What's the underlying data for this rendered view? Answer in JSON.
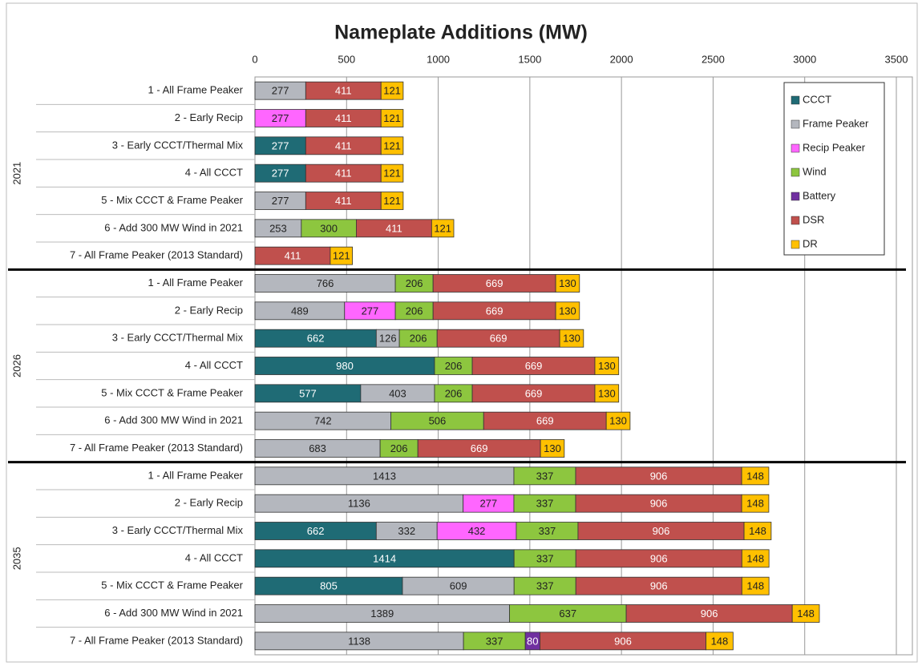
{
  "chart_data": {
    "type": "stacked-bar-horizontal",
    "title": "Nameplate Additions (MW)",
    "group_labels": [
      "2021",
      "2026",
      "2035"
    ],
    "categories": [
      "1 - All Frame Peaker",
      "2 - Early Recip",
      "3 - Early CCCT/Thermal Mix",
      "4 - All CCCT",
      "5 - Mix CCCT & Frame Peaker",
      "6 - Add 300 MW Wind in 2021",
      "7 - All Frame Peaker (2013 Standard)",
      "1 - All Frame Peaker",
      "2 - Early Recip",
      "3 - Early CCCT/Thermal Mix",
      "4 - All CCCT",
      "5 - Mix CCCT & Frame Peaker",
      "6 - Add 300 MW Wind in 2021",
      "7 - All Frame Peaker (2013 Standard)",
      "1 - All Frame Peaker",
      "2 - Early Recip",
      "3 - Early CCCT/Thermal Mix",
      "4 - All CCCT",
      "5 - Mix CCCT & Frame Peaker",
      "6 - Add 300 MW Wind in 2021",
      "7 - All Frame Peaker (2013 Standard)"
    ],
    "series": [
      {
        "name": "CCCT",
        "color": "#1f6b75",
        "label_color": "#ffffff",
        "values": [
          null,
          null,
          277,
          277,
          null,
          null,
          null,
          null,
          null,
          662,
          980,
          577,
          null,
          null,
          null,
          null,
          662,
          1414,
          805,
          null,
          null
        ]
      },
      {
        "name": "Frame Peaker",
        "color": "#b4b7be",
        "label_color": "#222222",
        "values": [
          277,
          null,
          null,
          null,
          277,
          253,
          null,
          766,
          489,
          126,
          null,
          403,
          742,
          683,
          1413,
          1136,
          332,
          null,
          609,
          1389,
          1138
        ]
      },
      {
        "name": "Recip Peaker",
        "color": "#ff66ff",
        "label_color": "#222222",
        "values": [
          null,
          277,
          null,
          null,
          null,
          null,
          null,
          null,
          277,
          null,
          null,
          null,
          null,
          null,
          null,
          277,
          432,
          null,
          null,
          null,
          null
        ]
      },
      {
        "name": "Wind",
        "color": "#8dc63f",
        "label_color": "#222222",
        "values": [
          null,
          null,
          null,
          null,
          null,
          300,
          null,
          206,
          206,
          206,
          206,
          206,
          506,
          206,
          337,
          337,
          337,
          337,
          337,
          637,
          337
        ]
      },
      {
        "name": "Battery",
        "color": "#7030a0",
        "label_color": "#ffffff",
        "values": [
          null,
          null,
          null,
          null,
          null,
          null,
          null,
          null,
          null,
          null,
          null,
          null,
          null,
          null,
          null,
          null,
          null,
          null,
          null,
          null,
          80
        ]
      },
      {
        "name": "DSR",
        "color": "#c0504d",
        "label_color": "#ffffff",
        "values": [
          411,
          411,
          411,
          411,
          411,
          411,
          411,
          669,
          669,
          669,
          669,
          669,
          669,
          669,
          906,
          906,
          906,
          906,
          906,
          906,
          906
        ]
      },
      {
        "name": "DR",
        "color": "#ffc000",
        "label_color": "#222222",
        "values": [
          121,
          121,
          121,
          121,
          121,
          121,
          121,
          130,
          130,
          130,
          130,
          130,
          130,
          130,
          148,
          148,
          148,
          148,
          148,
          148,
          148
        ]
      }
    ],
    "xlim": [
      0,
      3500
    ],
    "xticks": [
      0,
      500,
      1000,
      1500,
      2000,
      2500,
      3000,
      3500
    ],
    "grid": true,
    "legend": "upper right"
  }
}
